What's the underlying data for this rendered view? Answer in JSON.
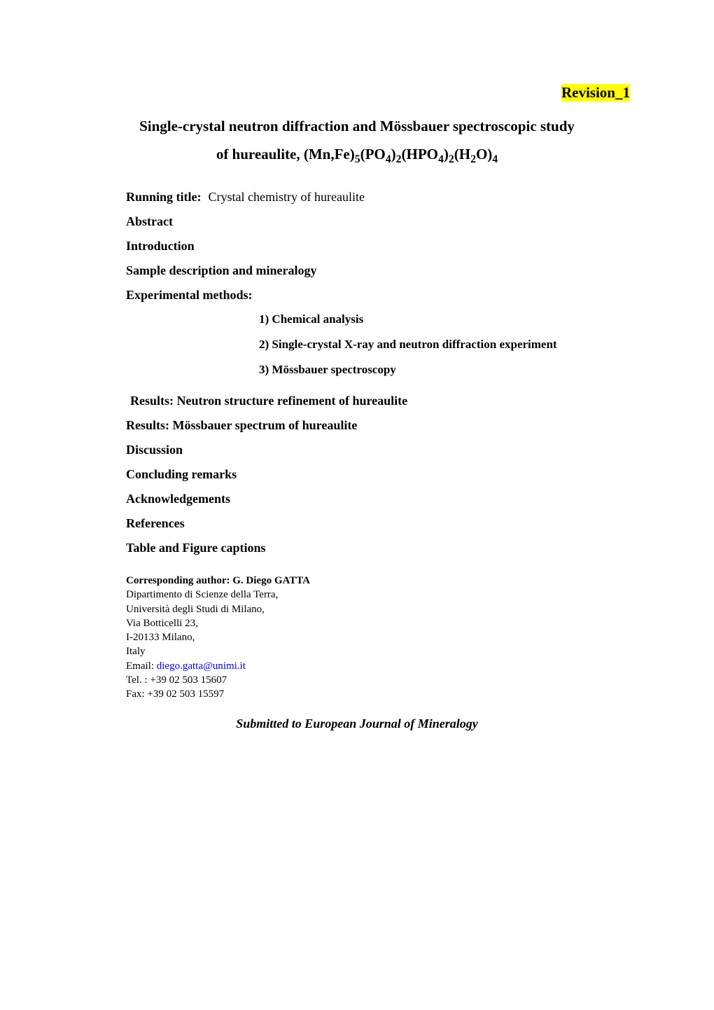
{
  "revision": "Revision_1",
  "title_line1": "Single-crystal neutron diffraction and Mössbauer spectroscopic study",
  "title_line2_prefix": "of hureaulite, (Mn,Fe)",
  "title_sub1": "5",
  "title_mid1": "(PO",
  "title_sub2": "4",
  "title_mid2": ")",
  "title_sub3": "2",
  "title_mid3": "(HPO",
  "title_sub4": "4",
  "title_mid4": ")",
  "title_sub5": "2",
  "title_mid5": "(H",
  "title_sub6": "2",
  "title_mid6": "O)",
  "title_sub7": "4",
  "running_title_label": "Running title:",
  "running_title_value": "Crystal chemistry of hureaulite",
  "sections": {
    "abstract": "Abstract",
    "introduction": "Introduction",
    "sample": "Sample description and mineralogy",
    "methods": "Experimental methods:",
    "methods_items": {
      "i1": "1)   Chemical analysis",
      "i2": "2)   Single-crystal X-ray and neutron diffraction experiment",
      "i3": "3)   Mössbauer spectroscopy"
    },
    "results_neutron": "Results: Neutron structure refinement of hureaulite",
    "results_mossbauer": "Results: Mössbauer spectrum of hureaulite",
    "discussion": "Discussion",
    "concluding": "Concluding remarks",
    "ack": "Acknowledgements",
    "references": "References",
    "captions": "Table and Figure captions"
  },
  "contact": {
    "heading": "Corresponding author: G. Diego GATTA",
    "dept": "Dipartimento di Scienze della Terra,",
    "univ": "Università degli Studi di Milano,",
    "street": "Via Botticelli 23,",
    "postal": "I-20133 Milano,",
    "country": "Italy",
    "email_label": "Email: ",
    "email_value": "diego.gatta@unimi.it",
    "tel": "Tel. : +39 02 503 15607",
    "fax": "Fax: +39 02 503 15597"
  },
  "submitted": "Submitted to European Journal of Mineralogy",
  "colors": {
    "highlight_bg": "#ffff00",
    "link_color": "#0000ee",
    "text_color": "#000000",
    "page_bg": "#ffffff"
  },
  "typography": {
    "title_fontsize": 21,
    "heading_fontsize": 18,
    "body_fontsize": 18,
    "subitem_fontsize": 17,
    "contact_fontsize": 15,
    "font_family": "Times New Roman"
  }
}
